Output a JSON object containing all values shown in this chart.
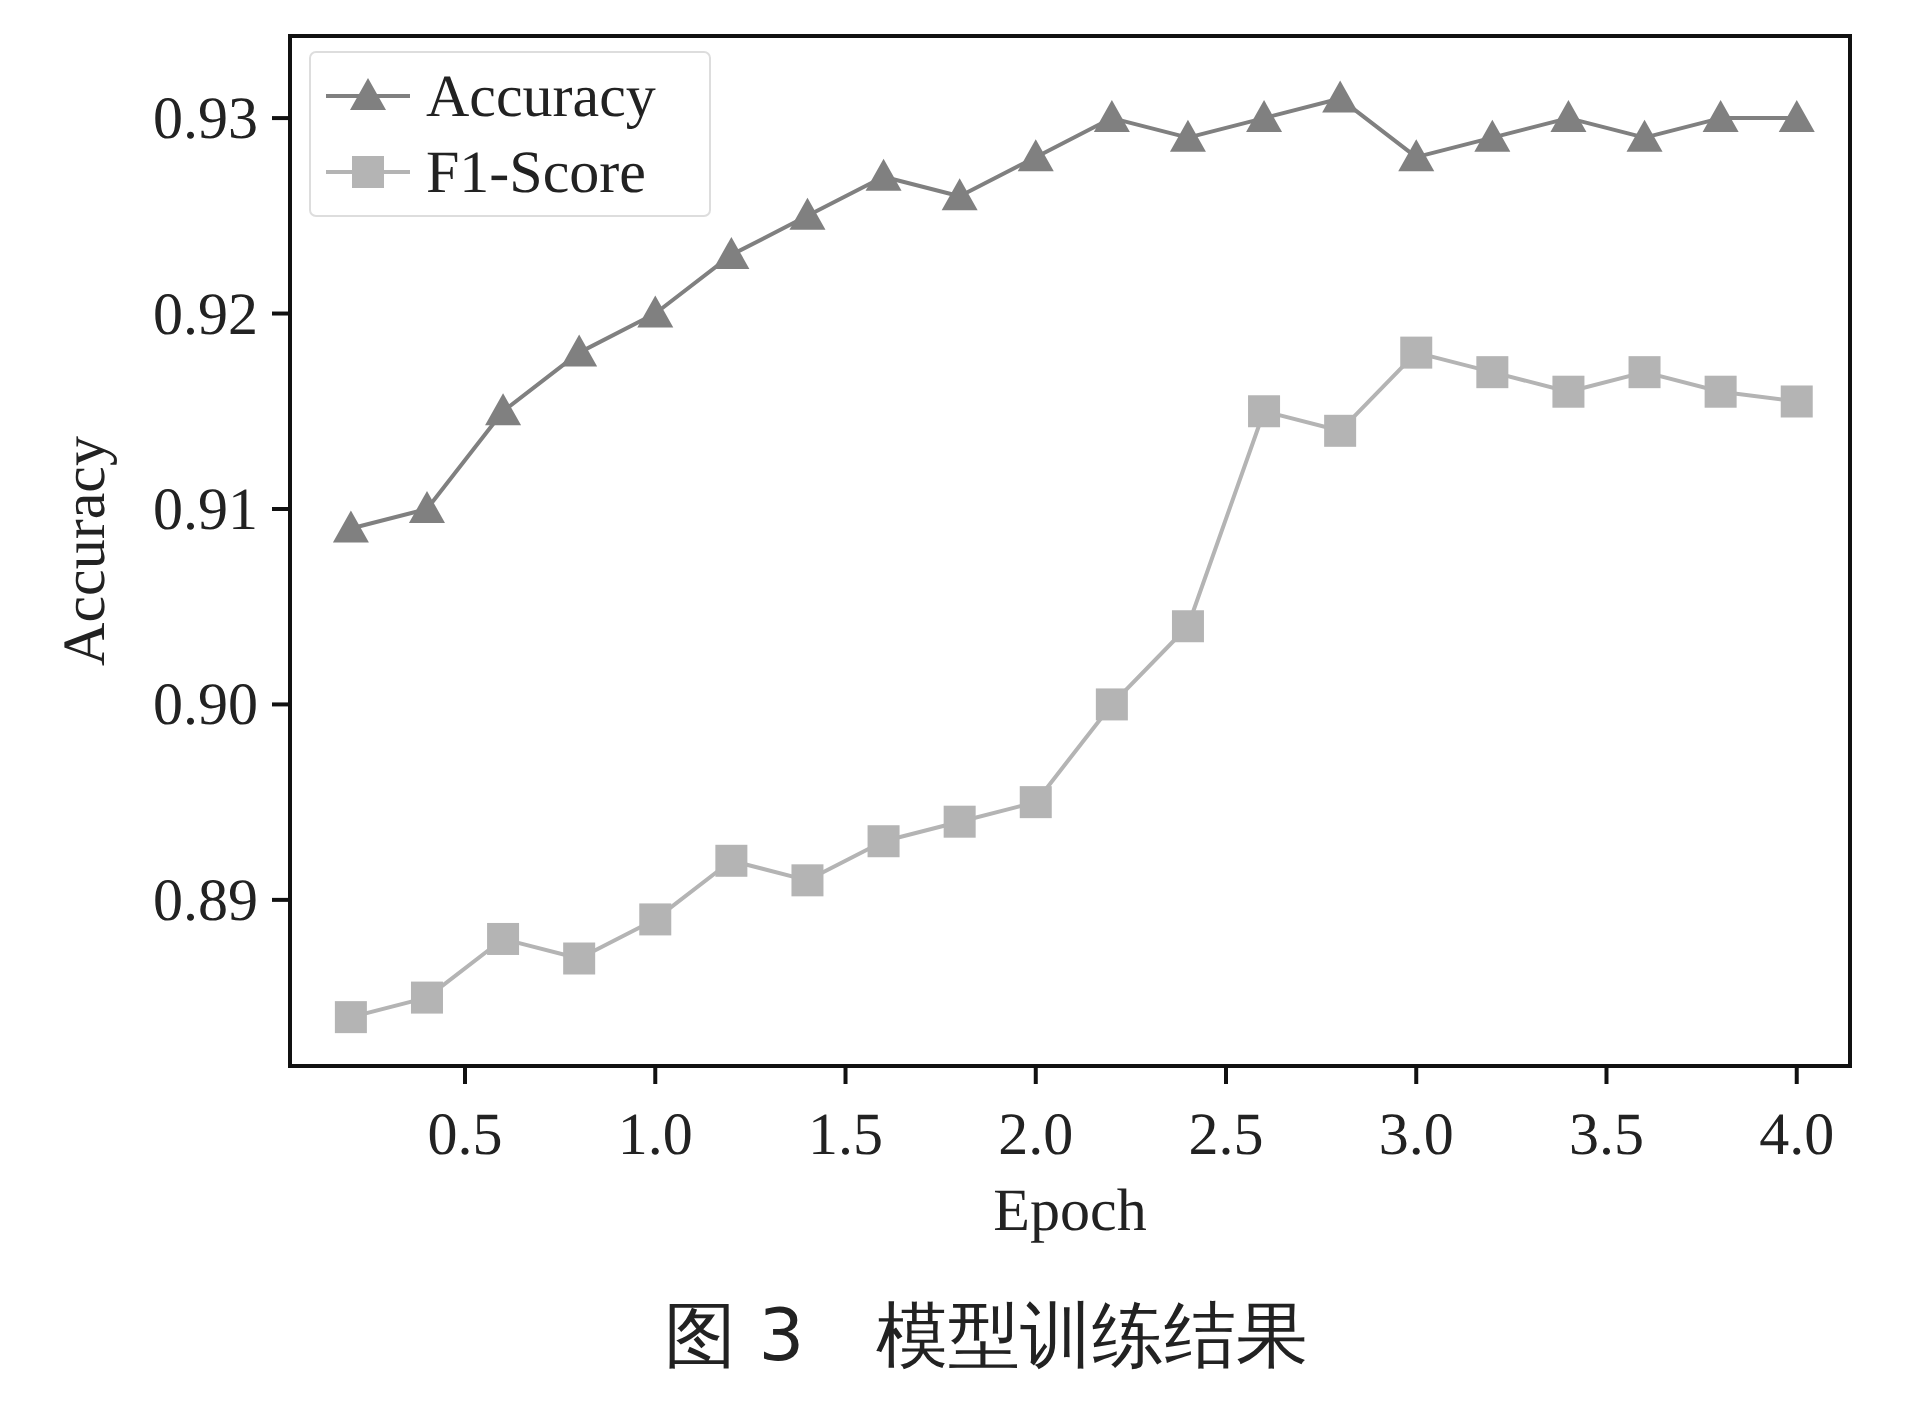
{
  "chart_data": {
    "type": "line",
    "xlabel": "Epoch",
    "ylabel": "Accuracy",
    "annotations": [
      "图 3　模型训练结果"
    ],
    "x": [
      0.2,
      0.4,
      0.6,
      0.8,
      1.0,
      1.2,
      1.4,
      1.6,
      1.8,
      2.0,
      2.2,
      2.4,
      2.6,
      2.8,
      3.0,
      3.2,
      3.4,
      3.6,
      3.8,
      4.0
    ],
    "series": [
      {
        "name": "Accuracy",
        "color": "#808080",
        "marker": "triangle",
        "values": [
          0.909,
          0.91,
          0.915,
          0.918,
          0.92,
          0.923,
          0.925,
          0.927,
          0.926,
          0.928,
          0.93,
          0.929,
          0.93,
          0.931,
          0.928,
          0.929,
          0.93,
          0.929,
          0.93,
          0.93
        ]
      },
      {
        "name": "F1-Score",
        "color": "#b4b4b4",
        "marker": "square",
        "values": [
          0.884,
          0.885,
          0.888,
          0.887,
          0.889,
          0.892,
          0.891,
          0.893,
          0.894,
          0.895,
          0.9,
          0.904,
          0.915,
          0.914,
          0.918,
          0.917,
          0.916,
          0.917,
          0.916,
          0.9155
        ]
      }
    ],
    "xlim": [
      0.04,
      4.14
    ],
    "xticks": [
      {
        "value": 0.5,
        "label": "0.5"
      },
      {
        "value": 1.0,
        "label": "1.0"
      },
      {
        "value": 1.5,
        "label": "1.5"
      },
      {
        "value": 2.0,
        "label": "2.0"
      },
      {
        "value": 2.5,
        "label": "2.5"
      },
      {
        "value": 3.0,
        "label": "3.0"
      },
      {
        "value": 3.5,
        "label": "3.5"
      },
      {
        "value": 4.0,
        "label": "4.0"
      }
    ],
    "ylim": [
      0.8815,
      0.9342
    ],
    "yticks": [
      {
        "value": 0.89,
        "label": "0.89"
      },
      {
        "value": 0.9,
        "label": "0.90"
      },
      {
        "value": 0.91,
        "label": "0.91"
      },
      {
        "value": 0.92,
        "label": "0.92"
      },
      {
        "value": 0.93,
        "label": "0.93"
      }
    ],
    "legend": "top left",
    "grid": false,
    "line_style": "solid"
  }
}
